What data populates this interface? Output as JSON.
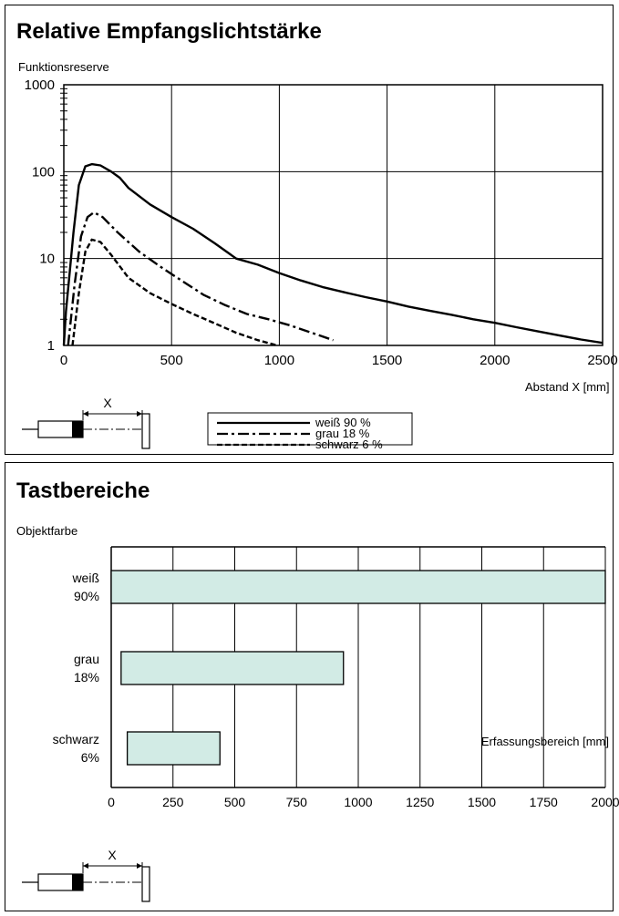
{
  "chart_data": [
    {
      "type": "line",
      "title": "Relative Empfangslichtstärke",
      "ylabel": "Funktionsreserve",
      "xlabel": "Abstand X [mm]",
      "y_scale": "log",
      "xlim": [
        0,
        2500
      ],
      "ylim": [
        1,
        1000
      ],
      "x_ticks": [
        "0",
        "500",
        "1000",
        "1500",
        "2000",
        "2500"
      ],
      "y_ticks": [
        "1",
        "10",
        "100",
        "1000"
      ],
      "grid": true,
      "legend_position": "bottom-center",
      "diagram_label": "X",
      "series": [
        {
          "name": "weiß 90 %",
          "style": "solid",
          "points": [
            [
              0,
              1
            ],
            [
              10,
              2.5
            ],
            [
              25,
              6
            ],
            [
              45,
              20
            ],
            [
              70,
              70
            ],
            [
              100,
              115
            ],
            [
              130,
              122
            ],
            [
              170,
              118
            ],
            [
              220,
              100
            ],
            [
              260,
              85
            ],
            [
              300,
              65
            ],
            [
              400,
              42
            ],
            [
              500,
              30
            ],
            [
              600,
              22
            ],
            [
              700,
              15
            ],
            [
              800,
              10
            ],
            [
              900,
              8.5
            ],
            [
              1000,
              6.8
            ],
            [
              1100,
              5.6
            ],
            [
              1200,
              4.7
            ],
            [
              1300,
              4.1
            ],
            [
              1400,
              3.6
            ],
            [
              1500,
              3.2
            ],
            [
              1600,
              2.8
            ],
            [
              1700,
              2.5
            ],
            [
              1800,
              2.25
            ],
            [
              1900,
              2.0
            ],
            [
              2000,
              1.82
            ],
            [
              2100,
              1.62
            ],
            [
              2200,
              1.45
            ],
            [
              2300,
              1.3
            ],
            [
              2400,
              1.17
            ],
            [
              2500,
              1.07
            ]
          ]
        },
        {
          "name": "grau 18 %",
          "style": "dashdot",
          "points": [
            [
              20,
              1
            ],
            [
              50,
              5
            ],
            [
              80,
              18
            ],
            [
              110,
              30
            ],
            [
              140,
              34
            ],
            [
              180,
              30
            ],
            [
              250,
              20
            ],
            [
              350,
              12
            ],
            [
              450,
              8
            ],
            [
              550,
              5.5
            ],
            [
              650,
              3.8
            ],
            [
              750,
              2.9
            ],
            [
              850,
              2.3
            ],
            [
              950,
              2.0
            ],
            [
              1050,
              1.7
            ],
            [
              1150,
              1.4
            ],
            [
              1250,
              1.15
            ]
          ]
        },
        {
          "name": "schwarz 6 %",
          "style": "dashed",
          "points": [
            [
              40,
              1
            ],
            [
              70,
              4
            ],
            [
              100,
              12
            ],
            [
              130,
              16.5
            ],
            [
              170,
              15.5
            ],
            [
              220,
              11
            ],
            [
              300,
              6
            ],
            [
              400,
              4
            ],
            [
              500,
              3
            ],
            [
              600,
              2.3
            ],
            [
              700,
              1.8
            ],
            [
              800,
              1.4
            ],
            [
              900,
              1.15
            ],
            [
              990,
              1.0
            ]
          ]
        }
      ]
    },
    {
      "type": "bar",
      "orientation": "horizontal",
      "title": "Tastbereiche",
      "ylabel": "Objektfarbe",
      "xlabel": "Erfassungsbereich [mm]",
      "xlim": [
        0,
        2000
      ],
      "x_ticks": [
        "0",
        "250",
        "500",
        "750",
        "1000",
        "1250",
        "1500",
        "1750",
        "2000"
      ],
      "grid": true,
      "diagram_label": "X",
      "categories": [
        [
          "weiß",
          "90%"
        ],
        [
          "grau",
          "18%"
        ],
        [
          "schwarz",
          "6%"
        ]
      ],
      "ranges": [
        [
          0,
          2000
        ],
        [
          40,
          940
        ],
        [
          65,
          440
        ]
      ],
      "bar_color": "#d2ebe5"
    }
  ]
}
